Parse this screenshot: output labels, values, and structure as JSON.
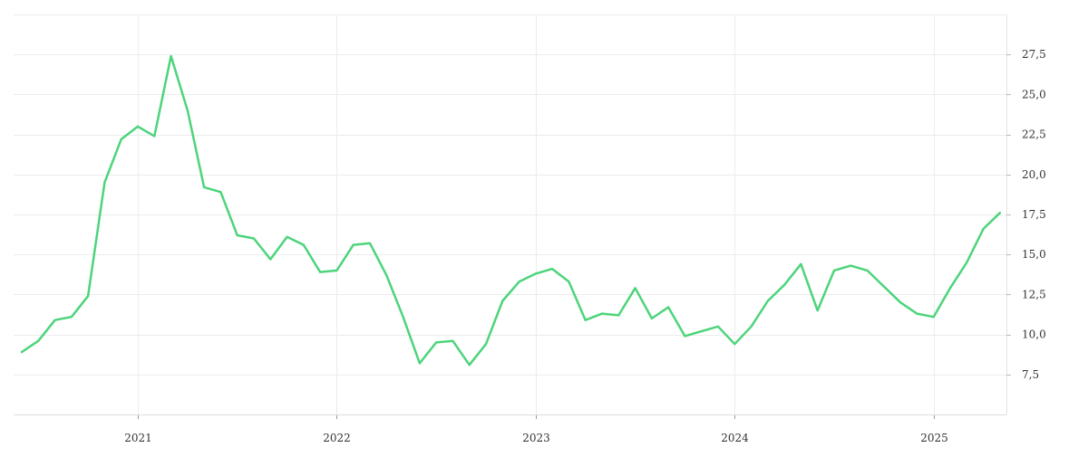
{
  "chart_data": {
    "type": "line",
    "title": "",
    "xlabel": "",
    "ylabel": "",
    "x_ticks": [
      "2021",
      "2022",
      "2023",
      "2024",
      "2025"
    ],
    "y_ticks": [
      "7,5",
      "10,0",
      "12,5",
      "15,0",
      "17,5",
      "20,0",
      "22,5",
      "25,0",
      "27,5"
    ],
    "ylim": [
      5,
      30
    ],
    "xlim": [
      "2020-06",
      "2025-05"
    ],
    "y_axis_position": "right",
    "grid": true,
    "line_color": "#4cd47b",
    "series": [
      {
        "x": [
          "2020-06",
          "2020-07",
          "2020-08",
          "2020-09",
          "2020-10",
          "2020-11",
          "2020-12",
          "2021-01",
          "2021-02",
          "2021-03",
          "2021-04",
          "2021-05",
          "2021-06",
          "2021-07",
          "2021-08",
          "2021-09",
          "2021-10",
          "2021-11",
          "2021-12",
          "2022-01",
          "2022-02",
          "2022-03",
          "2022-04",
          "2022-05",
          "2022-06",
          "2022-07",
          "2022-08",
          "2022-09",
          "2022-10",
          "2022-11",
          "2022-12",
          "2023-01",
          "2023-02",
          "2023-03",
          "2023-04",
          "2023-05",
          "2023-06",
          "2023-07",
          "2023-08",
          "2023-09",
          "2023-10",
          "2023-11",
          "2023-12",
          "2024-01",
          "2024-02",
          "2024-03",
          "2024-04",
          "2024-05",
          "2024-06",
          "2024-07",
          "2024-08",
          "2024-09",
          "2024-10",
          "2024-11",
          "2024-12",
          "2025-01",
          "2025-02",
          "2025-03",
          "2025-04",
          "2025-05"
        ],
        "values": [
          8.9,
          9.6,
          10.9,
          11.1,
          12.4,
          19.5,
          22.2,
          23.0,
          22.4,
          27.4,
          24.0,
          19.2,
          18.9,
          16.2,
          16.0,
          14.7,
          16.1,
          15.6,
          13.9,
          14.0,
          15.6,
          15.7,
          13.7,
          11.1,
          8.2,
          9.5,
          9.6,
          8.1,
          9.4,
          12.1,
          13.3,
          13.8,
          14.1,
          13.3,
          10.9,
          11.3,
          11.2,
          12.9,
          11.0,
          11.7,
          9.9,
          10.2,
          10.5,
          9.4,
          10.5,
          12.1,
          13.1,
          14.4,
          11.5,
          14.0,
          14.3,
          14.0,
          13.0,
          12.0,
          11.3,
          11.1,
          12.9,
          14.5,
          16.6,
          17.6
        ]
      }
    ]
  }
}
